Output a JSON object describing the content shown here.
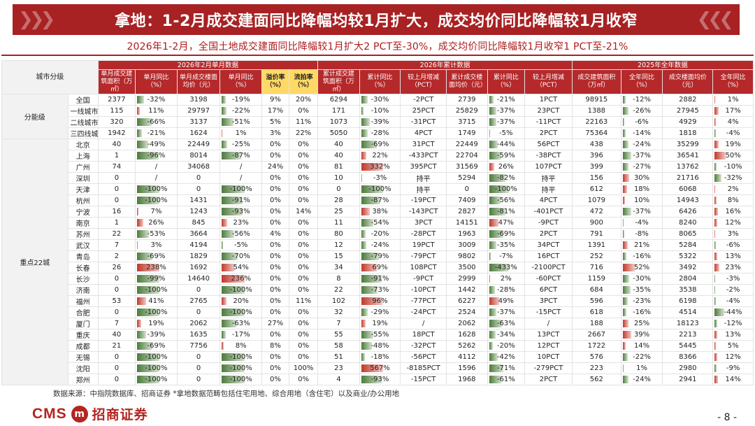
{
  "title": "拿地：1-2月成交建面同比降幅均较1月扩大，成交均价同比降幅较1月收窄",
  "subtitle": "2026年1-2月，全国土地成交建面同比降幅较1月扩大2 PCT至-30%，成交均价同比降幅较1月收窄1 PCT至-21%",
  "header": {
    "corner": "城市分级",
    "groups": [
      "2026年2月单月数据",
      "2026年累计数据",
      "2025年全年数据"
    ],
    "cols": [
      "单月成交建筑面积（万㎡）",
      "单月同比（%）",
      "单月成交楼面均价（元）",
      "单月同比（%）",
      "溢价率（%）",
      "流拍率（%）",
      "累计成交建筑面积（万㎡）",
      "累计同比（%）",
      "较上月增减（PCT）",
      "累计成交楼面均价（元）",
      "累计同比（%）",
      "较上月增减（PCT）",
      "成交建筑面积（万㎡）",
      "全年同比（%）",
      "成交楼面均价（元）",
      "全年同比（%）"
    ]
  },
  "row_groups": [
    "分能级",
    "重点22城"
  ],
  "rows": [
    {
      "name": "全国",
      "v": [
        "2377",
        "-32%",
        "3198",
        "-19%",
        "9%",
        "20%",
        "6294",
        "-30%",
        "-2PCT",
        "2739",
        "-21%",
        "1PCT",
        "98915",
        "-12%",
        "2882",
        "1%"
      ],
      "b": [
        -32,
        -19,
        -30,
        -21,
        -12,
        1
      ]
    },
    {
      "name": "一线城市",
      "v": [
        "115",
        "11%",
        "29797",
        "-22%",
        "17%",
        "0%",
        "171",
        "-10%",
        "25PCT",
        "25829",
        "-37%",
        "23PCT",
        "1388",
        "-26%",
        "27945",
        "17%"
      ],
      "b": [
        11,
        -22,
        -10,
        -37,
        -26,
        17
      ]
    },
    {
      "name": "二线城市",
      "v": [
        "320",
        "-66%",
        "3137",
        "-51%",
        "5%",
        "11%",
        "1073",
        "-39%",
        "-31PCT",
        "3715",
        "-37%",
        "-11PCT",
        "22163",
        "-6%",
        "4929",
        "4%"
      ],
      "b": [
        -66,
        -51,
        -39,
        -37,
        -6,
        4
      ]
    },
    {
      "name": "三四线城市",
      "v": [
        "1942",
        "-21%",
        "1624",
        "1%",
        "3%",
        "22%",
        "5050",
        "-28%",
        "4PCT",
        "1749",
        "-5%",
        "2PCT",
        "75364",
        "-14%",
        "1818",
        "-4%"
      ],
      "b": [
        -21,
        1,
        -28,
        -5,
        -14,
        -4
      ]
    },
    {
      "name": "北京",
      "v": [
        "40",
        "-49%",
        "22449",
        "-25%",
        "0%",
        "0%",
        "40",
        "-69%",
        "31PCT",
        "22449",
        "-44%",
        "56PCT",
        "438",
        "-24%",
        "35299",
        "19%"
      ],
      "b": [
        -49,
        -25,
        -69,
        -44,
        -24,
        19
      ]
    },
    {
      "name": "上海",
      "v": [
        "1",
        "-96%",
        "8014",
        "-87%",
        "0%",
        "0%",
        "40",
        "22%",
        "-433PCT",
        "22704",
        "-59%",
        "-38PCT",
        "396",
        "-37%",
        "36541",
        "50%"
      ],
      "b": [
        -96,
        -87,
        22,
        -59,
        -37,
        50
      ]
    },
    {
      "name": "广州",
      "v": [
        "74",
        "/",
        "34068",
        "/",
        "24%",
        "0%",
        "81",
        "332%",
        "395PCT",
        "31569",
        "26%",
        "107PCT",
        "399",
        "-27%",
        "13762",
        "-10%"
      ],
      "b": [
        0,
        0,
        100,
        26,
        -27,
        -10
      ]
    },
    {
      "name": "深圳",
      "v": [
        "0",
        "/",
        "0",
        "/",
        "0%",
        "0%",
        "10",
        "-3%",
        "持平",
        "5294",
        "-82%",
        "持平",
        "156",
        "30%",
        "21716",
        "-32%"
      ],
      "b": [
        0,
        0,
        -3,
        -82,
        30,
        -32
      ]
    },
    {
      "name": "天津",
      "v": [
        "0",
        "-100%",
        "0",
        "-100%",
        "0%",
        "0%",
        "0",
        "-100%",
        "持平",
        "0",
        "-100%",
        "持平",
        "612",
        "18%",
        "6068",
        "2%"
      ],
      "b": [
        -100,
        -100,
        -100,
        -100,
        18,
        2
      ]
    },
    {
      "name": "杭州",
      "v": [
        "0",
        "-100%",
        "1431",
        "-91%",
        "0%",
        "0%",
        "28",
        "-87%",
        "-19PCT",
        "7409",
        "-56%",
        "4PCT",
        "1079",
        "10%",
        "14943",
        "8%"
      ],
      "b": [
        -100,
        -91,
        -87,
        -56,
        10,
        8
      ]
    },
    {
      "name": "宁波",
      "v": [
        "16",
        "7%",
        "1243",
        "-93%",
        "0%",
        "14%",
        "25",
        "38%",
        "-143PCT",
        "2827",
        "-81%",
        "-401PCT",
        "472",
        "-37%",
        "6426",
        "16%"
      ],
      "b": [
        7,
        -93,
        38,
        -81,
        -37,
        16
      ]
    },
    {
      "name": "南京",
      "v": [
        "1",
        "26%",
        "845",
        "23%",
        "0%",
        "0%",
        "11",
        "-54%",
        "3PCT",
        "14151",
        "47%",
        "-9PCT",
        "900",
        "-4%",
        "8240",
        "12%"
      ],
      "b": [
        26,
        23,
        -54,
        47,
        -4,
        12
      ]
    },
    {
      "name": "苏州",
      "v": [
        "22",
        "-53%",
        "3664",
        "-56%",
        "4%",
        "0%",
        "80",
        "-20%",
        "-28PCT",
        "1963",
        "-69%",
        "2PCT",
        "791",
        "-8%",
        "8065",
        "3%"
      ],
      "b": [
        -53,
        -56,
        -20,
        -69,
        -8,
        3
      ]
    },
    {
      "name": "武汉",
      "v": [
        "7",
        "3%",
        "4194",
        "-5%",
        "0%",
        "0%",
        "12",
        "-24%",
        "19PCT",
        "3009",
        "-35%",
        "34PCT",
        "1391",
        "21%",
        "5284",
        "-6%"
      ],
      "b": [
        3,
        -5,
        -24,
        -35,
        21,
        -6
      ]
    },
    {
      "name": "青岛",
      "v": [
        "2",
        "-69%",
        "1829",
        "-70%",
        "0%",
        "0%",
        "15",
        "-79%",
        "-79PCT",
        "9802",
        "-7%",
        "16PCT",
        "252",
        "-16%",
        "5322",
        "13%"
      ],
      "b": [
        -69,
        -70,
        -79,
        -7,
        -16,
        13
      ]
    },
    {
      "name": "长春",
      "v": [
        "26",
        "238%",
        "1692",
        "54%",
        "0%",
        "0%",
        "34",
        "69%",
        "108PCT",
        "3500",
        "-433%",
        "-2100PCT",
        "716",
        "52%",
        "3492",
        "23%"
      ],
      "b": [
        100,
        54,
        69,
        -100,
        52,
        23
      ]
    },
    {
      "name": "长沙",
      "v": [
        "0",
        "-99%",
        "14640",
        "236%",
        "0%",
        "0%",
        "8",
        "-91%",
        "-9PCT",
        "2999",
        "2%",
        "-60PCT",
        "1159",
        "-30%",
        "2804",
        "-3%"
      ],
      "b": [
        -99,
        100,
        -91,
        2,
        -30,
        -3
      ]
    },
    {
      "name": "济南",
      "v": [
        "0",
        "-100%",
        "0",
        "-100%",
        "0%",
        "0%",
        "22",
        "-73%",
        "-10PCT",
        "1442",
        "-28%",
        "6PCT",
        "684",
        "-35%",
        "3538",
        "-2%"
      ],
      "b": [
        -100,
        -100,
        -73,
        -28,
        -35,
        -2
      ]
    },
    {
      "name": "福州",
      "v": [
        "53",
        "41%",
        "2765",
        "20%",
        "0%",
        "11%",
        "102",
        "96%",
        "-77PCT",
        "6227",
        "49%",
        "3PCT",
        "596",
        "-23%",
        "6198",
        "-4%"
      ],
      "b": [
        41,
        20,
        96,
        49,
        -23,
        -4
      ]
    },
    {
      "name": "合肥",
      "v": [
        "0",
        "-100%",
        "0",
        "-100%",
        "0%",
        "0%",
        "32",
        "-29%",
        "-24PCT",
        "2524",
        "-37%",
        "-15PCT",
        "618",
        "-16%",
        "4514",
        "-44%"
      ],
      "b": [
        -100,
        -100,
        -29,
        -37,
        -16,
        -44
      ]
    },
    {
      "name": "厦门",
      "v": [
        "7",
        "19%",
        "2062",
        "-63%",
        "27%",
        "0%",
        "7",
        "19%",
        "/",
        "2062",
        "-63%",
        "/",
        "188",
        "25%",
        "18123",
        "-12%"
      ],
      "b": [
        19,
        -63,
        19,
        -63,
        25,
        -12
      ]
    },
    {
      "name": "重庆",
      "v": [
        "40",
        "-39%",
        "1635",
        "-17%",
        "0%",
        "0%",
        "55",
        "-55%",
        "18PCT",
        "1628",
        "-34%",
        "13PCT",
        "2667",
        "39%",
        "2213",
        "13%"
      ],
      "b": [
        -39,
        -17,
        -55,
        -34,
        39,
        13
      ]
    },
    {
      "name": "成都",
      "v": [
        "21",
        "-69%",
        "7756",
        "8%",
        "8%",
        "0%",
        "58",
        "-48%",
        "-32PCT",
        "5262",
        "-20%",
        "12PCT",
        "1722",
        "14%",
        "5445",
        "5%"
      ],
      "b": [
        -69,
        8,
        -48,
        -20,
        14,
        5
      ]
    },
    {
      "name": "无锡",
      "v": [
        "0",
        "-100%",
        "0",
        "-100%",
        "0%",
        "0%",
        "51",
        "-18%",
        "-56PCT",
        "4112",
        "-42%",
        "10PCT",
        "576",
        "-22%",
        "8366",
        "12%"
      ],
      "b": [
        -100,
        -100,
        -18,
        -42,
        -22,
        12
      ]
    },
    {
      "name": "沈阳",
      "v": [
        "0",
        "-100%",
        "0",
        "-100%",
        "0%",
        "100%",
        "23",
        "567%",
        "-8185PCT",
        "1596",
        "-71%",
        "-279PCT",
        "223",
        "1%",
        "2980",
        "-9%"
      ],
      "b": [
        -100,
        -100,
        100,
        -71,
        1,
        -9
      ]
    },
    {
      "name": "郑州",
      "v": [
        "0",
        "-100%",
        "0",
        "-100%",
        "0%",
        "0%",
        "4",
        "-93%",
        "-15PCT",
        "1968",
        "-61%",
        "2PCT",
        "562",
        "-24%",
        "2941",
        "14%"
      ],
      "b": [
        -100,
        -100,
        -93,
        -61,
        -24,
        14
      ]
    }
  ],
  "footnote": "数据来源：中指院数据库、招商证券   *拿地数据范畴包括住宅用地、综合用地（含住宅）以及商业/办公用地",
  "logo": {
    "en": "CMS",
    "mark": "m",
    "cn": "招商证券"
  },
  "page_number": "- 8 -",
  "colors": {
    "brand_red": "#a82123",
    "header_red": "#b5292b",
    "highlight_yellow": "#ffd966",
    "neg_green": "#4c7a3c",
    "pos_red": "#c0392b"
  }
}
